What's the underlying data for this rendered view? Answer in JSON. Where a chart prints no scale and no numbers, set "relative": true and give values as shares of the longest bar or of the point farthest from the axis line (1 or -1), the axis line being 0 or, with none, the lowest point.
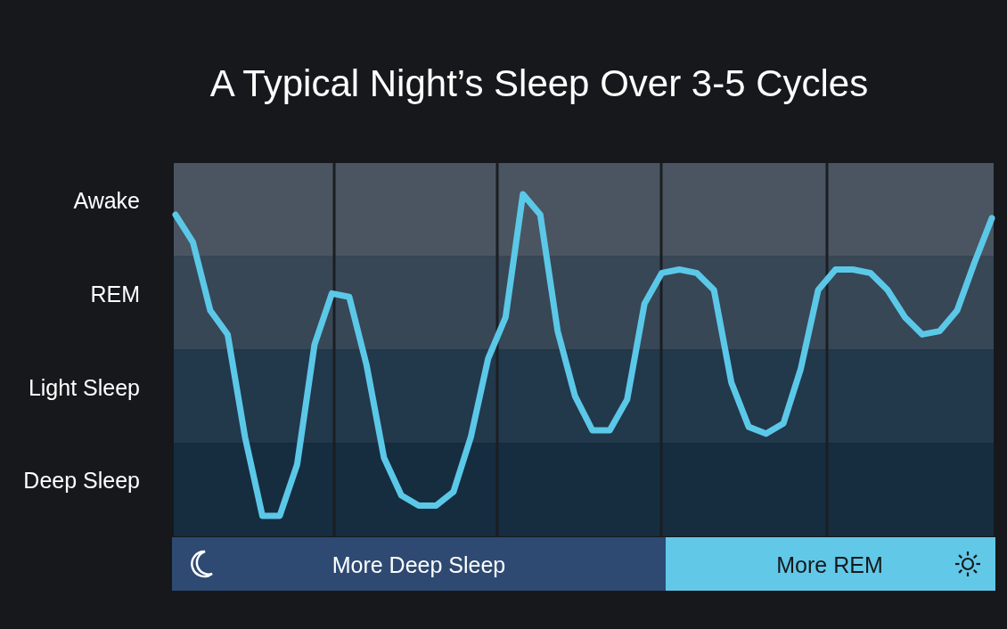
{
  "chart_data": {
    "type": "line",
    "title": "A Typical Night’s Sleep Over 3-5 Cycles",
    "relative": true,
    "categories": [
      null,
      null,
      null,
      null,
      null,
      null,
      null,
      null,
      null,
      null,
      null,
      null,
      null,
      null,
      null,
      null,
      null,
      null,
      null,
      null,
      null,
      null,
      null,
      null,
      null,
      null,
      null,
      null,
      null,
      null,
      null,
      null,
      null,
      null,
      null,
      null,
      null,
      null,
      null,
      null,
      null,
      null,
      null,
      null,
      null,
      null,
      null,
      null
    ],
    "series": [
      {
        "color": "#5bc8e8",
        "values": [
          0.94,
          0.86,
          0.66,
          0.59,
          0.29,
          0.06,
          0.06,
          0.21,
          0.56,
          0.71,
          0.7,
          0.5,
          0.23,
          0.12,
          0.09,
          0.09,
          0.13,
          0.29,
          0.52,
          0.64,
          1,
          0.94,
          0.6,
          0.41,
          0.31,
          0.31,
          0.4,
          0.68,
          0.77,
          0.78,
          0.77,
          0.72,
          0.45,
          0.32,
          0.3,
          0.33,
          0.49,
          0.72,
          0.78,
          0.78,
          0.77,
          0.72,
          0.64,
          0.59,
          0.6,
          0.66,
          0.8,
          0.93
        ]
      }
    ],
    "marker": "none",
    "line_style": "solid",
    "annotations": [
      "Awake",
      "REM",
      "Light Sleep",
      "Deep Sleep",
      "More Deep Sleep",
      "More REM"
    ]
  }
}
